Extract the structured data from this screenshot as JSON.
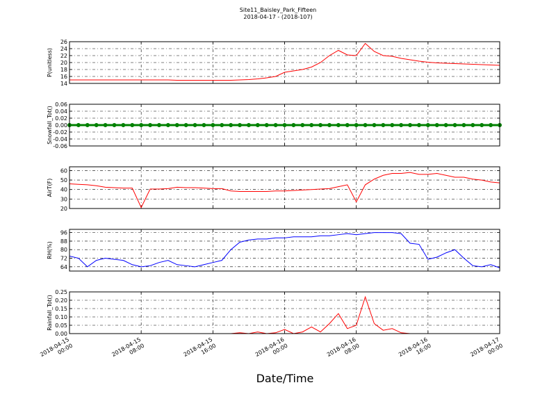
{
  "title": "Site11_Baisley_Park_Fifteen",
  "subtitle": "2018-04-17 - (2018-107)",
  "xlabel": "Date/Time",
  "grid": true,
  "xlim": [
    "2018-04-15 00:00",
    "2018-04-17 00:00"
  ],
  "xticks": [
    "2018-04-15 00:00",
    "2018-04-15 08:00",
    "2018-04-15 16:00",
    "2018-04-16 00:00",
    "2018-04-16 08:00",
    "2018-04-16 16:00",
    "2018-04-17 00:00"
  ],
  "x": [
    "2018-04-15 00:00",
    "2018-04-15 01:00",
    "2018-04-15 02:00",
    "2018-04-15 03:00",
    "2018-04-15 04:00",
    "2018-04-15 05:00",
    "2018-04-15 06:00",
    "2018-04-15 07:00",
    "2018-04-15 08:00",
    "2018-04-15 09:00",
    "2018-04-15 10:00",
    "2018-04-15 11:00",
    "2018-04-15 12:00",
    "2018-04-15 13:00",
    "2018-04-15 14:00",
    "2018-04-15 15:00",
    "2018-04-15 16:00",
    "2018-04-15 17:00",
    "2018-04-15 18:00",
    "2018-04-15 19:00",
    "2018-04-15 20:00",
    "2018-04-15 21:00",
    "2018-04-15 22:00",
    "2018-04-15 23:00",
    "2018-04-16 00:00",
    "2018-04-16 01:00",
    "2018-04-16 02:00",
    "2018-04-16 03:00",
    "2018-04-16 04:00",
    "2018-04-16 05:00",
    "2018-04-16 06:00",
    "2018-04-16 07:00",
    "2018-04-16 08:00",
    "2018-04-16 09:00",
    "2018-04-16 10:00",
    "2018-04-16 11:00",
    "2018-04-16 12:00",
    "2018-04-16 13:00",
    "2018-04-16 14:00",
    "2018-04-16 15:00",
    "2018-04-16 16:00",
    "2018-04-16 17:00",
    "2018-04-16 18:00",
    "2018-04-16 19:00",
    "2018-04-16 20:00",
    "2018-04-16 21:00",
    "2018-04-16 22:00",
    "2018-04-16 23:00",
    "2018-04-17 00:00"
  ],
  "chart_data": [
    {
      "type": "line",
      "ylabel": "P(unitless)",
      "color": "#ff0000",
      "ylim": [
        14,
        26
      ],
      "yticks": [
        14,
        16,
        18,
        20,
        22,
        24,
        26
      ],
      "values": [
        15,
        15,
        15,
        15,
        15,
        15,
        15,
        15,
        15,
        15,
        15,
        15,
        14.9,
        14.9,
        14.9,
        14.9,
        14.9,
        14.9,
        14.9,
        15,
        15.1,
        15.3,
        15.6,
        16,
        17.2,
        17.6,
        18,
        18.7,
        20,
        22,
        23.5,
        22.2,
        22,
        25.5,
        23.2,
        22,
        21.8,
        21.2,
        20.8,
        20.4,
        20.1,
        19.9,
        19.8,
        19.7,
        19.6,
        19.5,
        19.4,
        19.3,
        19.2
      ]
    },
    {
      "type": "line",
      "ylabel": "Snowfall_Tot()",
      "color": "#008000",
      "marker": true,
      "ylim": [
        -0.06,
        0.06
      ],
      "yticks": [
        {
          "value": -0.06,
          "label": "-0.06"
        },
        {
          "value": -0.04,
          "label": "-0.04"
        },
        {
          "value": -0.02,
          "label": "-0.02"
        },
        {
          "value": 0,
          "label": "0.00"
        },
        0.02,
        0.04,
        0.06
      ],
      "values": [
        0,
        0,
        0,
        0,
        0,
        0,
        0,
        0,
        0,
        0,
        0,
        0,
        0,
        0,
        0,
        0,
        0,
        0,
        0,
        0,
        0,
        0,
        0,
        0,
        0,
        0,
        0,
        0,
        0,
        0,
        0,
        0,
        0,
        0,
        0,
        0,
        0,
        0,
        0,
        0,
        0,
        0,
        0,
        0,
        0,
        0,
        0,
        0,
        0
      ]
    },
    {
      "type": "line",
      "ylabel": "AirT(F)",
      "color": "#ff0000",
      "ylim": [
        20,
        64
      ],
      "yticks": [
        20,
        30,
        40,
        50,
        60
      ],
      "values": [
        46,
        45.5,
        45,
        44,
        42.5,
        42,
        41.5,
        41.5,
        21,
        40.5,
        40.5,
        41,
        42.5,
        42,
        42,
        41.5,
        41,
        41,
        38.5,
        38,
        38,
        38,
        38,
        38.5,
        38.5,
        39,
        39.5,
        40,
        40.5,
        41,
        43,
        45,
        27,
        45,
        51,
        55,
        57,
        57,
        58,
        56,
        56,
        57,
        55,
        53,
        53,
        51,
        50,
        48,
        47
      ]
    },
    {
      "type": "line",
      "ylabel": "RH(%)",
      "color": "#0000ff",
      "ylim": [
        60,
        99
      ],
      "yticks": [
        64,
        72,
        80,
        88,
        96
      ],
      "values": [
        74,
        72,
        64,
        70,
        72,
        71,
        70,
        66,
        64,
        65,
        68,
        70,
        66,
        65,
        64,
        66,
        68,
        70,
        80,
        87,
        89,
        90,
        90,
        91,
        91,
        92,
        92,
        92,
        93,
        93,
        94,
        95,
        94,
        95,
        96,
        96,
        96,
        95,
        86,
        85,
        71,
        73,
        77,
        80,
        72,
        65,
        64,
        66,
        63
      ]
    },
    {
      "type": "line",
      "ylabel": "Rainfall_Tot()",
      "color": "#ff0000",
      "ylim": [
        0,
        0.25
      ],
      "yticks": [
        {
          "value": 0,
          "label": "0.00"
        },
        0.05,
        {
          "value": 0.1,
          "label": "0.10"
        },
        0.15,
        {
          "value": 0.2,
          "label": "0.20"
        },
        0.25
      ],
      "values": [
        0,
        0,
        0,
        0,
        0,
        0,
        0,
        0,
        0,
        0,
        0,
        0,
        0,
        0,
        0,
        0,
        0,
        0,
        0,
        0.005,
        0,
        0.01,
        0,
        0.005,
        0.025,
        0,
        0.01,
        0.04,
        0.01,
        0.06,
        0.12,
        0.03,
        0.05,
        0.22,
        0.06,
        0.02,
        0.03,
        0.005,
        0,
        0,
        0,
        0,
        0,
        0,
        0,
        0,
        0,
        0,
        0
      ]
    }
  ]
}
